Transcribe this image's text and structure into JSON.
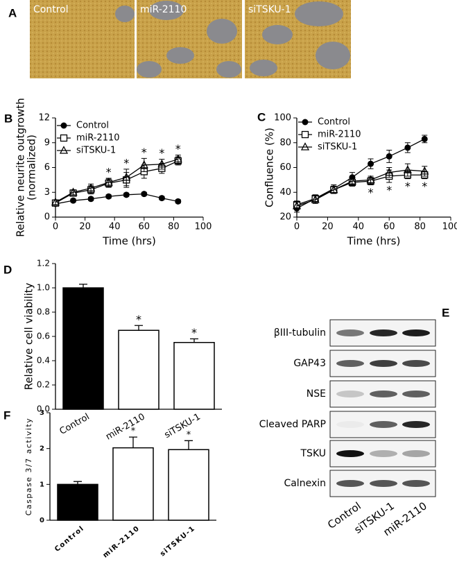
{
  "panel_labels": [
    "A",
    "B",
    "C",
    "D",
    "E",
    "F"
  ],
  "images": {
    "labels": [
      "Control",
      "miR-2110",
      "siTSKU-1"
    ]
  },
  "chart_data": [
    {
      "type": "line",
      "y_label": [
        "Relative neurite outgrowth",
        "(normalized)"
      ],
      "x_label": "Time (hrs)",
      "x": [
        0,
        12,
        24,
        36,
        48,
        60,
        72,
        83
      ],
      "xlim": [
        0,
        100
      ],
      "xticks": [
        0,
        20,
        40,
        60,
        80,
        100
      ],
      "ylim": [
        0,
        12
      ],
      "yticks": [
        0,
        3,
        6,
        9,
        12
      ],
      "series": [
        {
          "name": "Control",
          "marker": "circle",
          "color": "#000000",
          "values": [
            1.6,
            2.0,
            2.2,
            2.5,
            2.7,
            2.8,
            2.3,
            1.9
          ],
          "errors": [
            0.2,
            0.2,
            0.2,
            0.2,
            0.2,
            0.2,
            0.2,
            0.2
          ]
        },
        {
          "name": "miR-2110",
          "marker": "square",
          "color": "#000000",
          "values": [
            1.7,
            2.9,
            3.3,
            4.1,
            4.5,
            5.5,
            5.9,
            6.8
          ],
          "errors": [
            0.3,
            0.3,
            0.5,
            0.5,
            0.9,
            0.8,
            0.6,
            0.5
          ]
        },
        {
          "name": "siTSKU-1",
          "marker": "triangle",
          "color": "#000000",
          "values": [
            1.8,
            3.0,
            3.5,
            4.2,
            4.8,
            6.3,
            6.4,
            7.0
          ],
          "errors": [
            0.3,
            0.3,
            0.5,
            0.5,
            1.0,
            0.8,
            0.6,
            0.5
          ]
        }
      ],
      "asterisks": [
        null,
        null,
        null,
        "*",
        "*",
        "*",
        "*",
        "*"
      ],
      "asterisk_position": "above"
    },
    {
      "type": "line",
      "y_label": [
        "Confluence (%)"
      ],
      "x_label": "Time (hrs)",
      "x": [
        0,
        12,
        24,
        36,
        48,
        60,
        72,
        83
      ],
      "xlim": [
        0,
        100
      ],
      "xticks": [
        0,
        20,
        40,
        60,
        80,
        100
      ],
      "ylim": [
        20,
        100
      ],
      "yticks": [
        20,
        40,
        60,
        80,
        100
      ],
      "series": [
        {
          "name": "Control",
          "marker": "circle",
          "color": "#000000",
          "values": [
            27,
            35,
            43,
            52,
            63,
            69,
            76,
            83
          ],
          "errors": [
            3,
            3,
            3,
            4,
            4,
            5,
            4,
            3
          ]
        },
        {
          "name": "miR-2110",
          "marker": "square",
          "color": "#000000",
          "values": [
            30,
            35,
            42,
            48,
            49,
            53,
            54,
            54
          ],
          "errors": [
            3,
            3,
            3,
            3,
            3,
            5,
            3,
            3
          ]
        },
        {
          "name": "siTSKU-1",
          "marker": "triangle",
          "color": "#000000",
          "values": [
            29,
            34,
            42,
            49,
            50,
            56,
            58,
            57
          ],
          "errors": [
            3,
            3,
            3,
            3,
            3,
            4,
            5,
            4
          ]
        }
      ],
      "asterisks": [
        null,
        null,
        null,
        null,
        "*",
        "*",
        "*",
        "*"
      ],
      "asterisk_position": "below"
    },
    {
      "type": "bar",
      "y_label": [
        "Relative cell viability"
      ],
      "categories": [
        "Control",
        "miR-2110",
        "siTSKU-1"
      ],
      "values": [
        1.0,
        0.65,
        0.55
      ],
      "errors": [
        0.03,
        0.04,
        0.03
      ],
      "colors": [
        "#000000",
        "#ffffff",
        "#ffffff"
      ],
      "ylim": [
        0,
        1.2
      ],
      "yticks": [
        {
          "value": 0,
          "label": "0.0"
        },
        0.2,
        0.4,
        0.6,
        0.8,
        {
          "value": 1,
          "label": "1.0"
        },
        1.2
      ],
      "asterisks": [
        null,
        "*",
        "*"
      ]
    },
    {
      "type": "bar",
      "y_label": [
        "Caspase 3/7 activity"
      ],
      "categories": [
        "Control",
        "miR-2110",
        "siTSKU-1"
      ],
      "values": [
        1.0,
        2.02,
        1.97
      ],
      "errors": [
        0.08,
        0.3,
        0.25
      ],
      "colors": [
        "#000000",
        "#ffffff",
        "#ffffff"
      ],
      "ylim": [
        0,
        3
      ],
      "yticks": [
        0,
        1,
        2,
        3
      ],
      "asterisks": [
        null,
        "*",
        "*"
      ]
    }
  ],
  "blot": {
    "rows": [
      "βIII-tubulin",
      "GAP43",
      "NSE",
      "Cleaved PARP",
      "TSKU",
      "Calnexin"
    ],
    "lanes": [
      "Control",
      "siTSKU-1",
      "miR-2110"
    ]
  }
}
